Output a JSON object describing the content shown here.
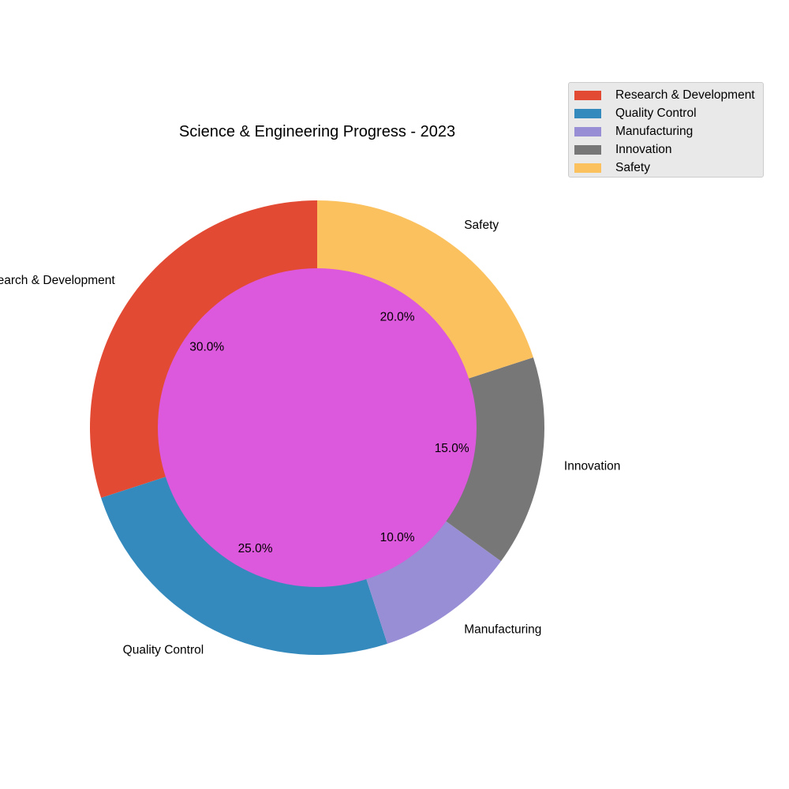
{
  "chart_data": {
    "type": "pie",
    "donut": true,
    "title": "Science & Engineering Progress - 2023",
    "categories": [
      "Research & Development",
      "Quality Control",
      "Manufacturing",
      "Innovation",
      "Safety"
    ],
    "values": [
      30,
      25,
      10,
      15,
      20
    ],
    "percent_labels": [
      "30.0%",
      "25.0%",
      "10.0%",
      "15.0%",
      "20.0%"
    ],
    "colors": [
      "#e24a33",
      "#348abd",
      "#988ed5",
      "#777777",
      "#fbc15e"
    ],
    "center_color": "#dc58dc",
    "start_angle_deg": 90,
    "direction": "counterclockwise",
    "legend": {
      "position": "top-right",
      "entries": [
        "Research & Development",
        "Quality Control",
        "Manufacturing",
        "Innovation",
        "Safety"
      ]
    }
  }
}
